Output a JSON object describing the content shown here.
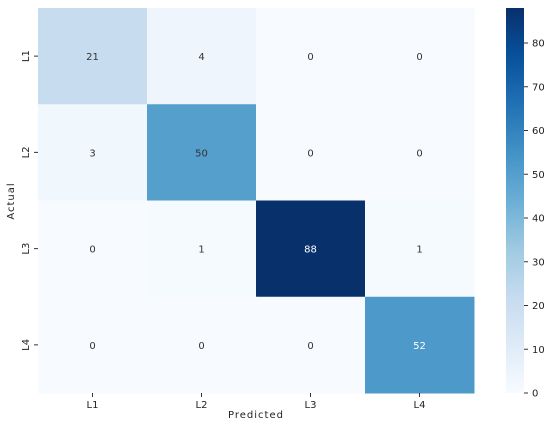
{
  "chart_data": {
    "type": "heatmap",
    "title": "",
    "xlabel": "Predicted",
    "ylabel": "Actual",
    "x_categories": [
      "L1",
      "L2",
      "L3",
      "L4"
    ],
    "y_categories": [
      "L1",
      "L2",
      "L3",
      "L4"
    ],
    "values": [
      [
        21,
        4,
        0,
        0
      ],
      [
        3,
        50,
        0,
        0
      ],
      [
        0,
        1,
        88,
        1
      ],
      [
        0,
        0,
        0,
        52
      ]
    ],
    "colorbar": {
      "min": 0,
      "max": 88,
      "ticks": [
        0,
        10,
        20,
        30,
        40,
        50,
        60,
        70,
        80
      ],
      "colormap": "Blues",
      "colors": [
        "#f7fbff",
        "#deebf7",
        "#c6dbef",
        "#9ecae1",
        "#6baed6",
        "#4292c6",
        "#2171b5",
        "#08519c",
        "#08306b"
      ]
    },
    "annotations": "cell values shown in each cell",
    "grid": false,
    "legend": "colorbar-right"
  }
}
